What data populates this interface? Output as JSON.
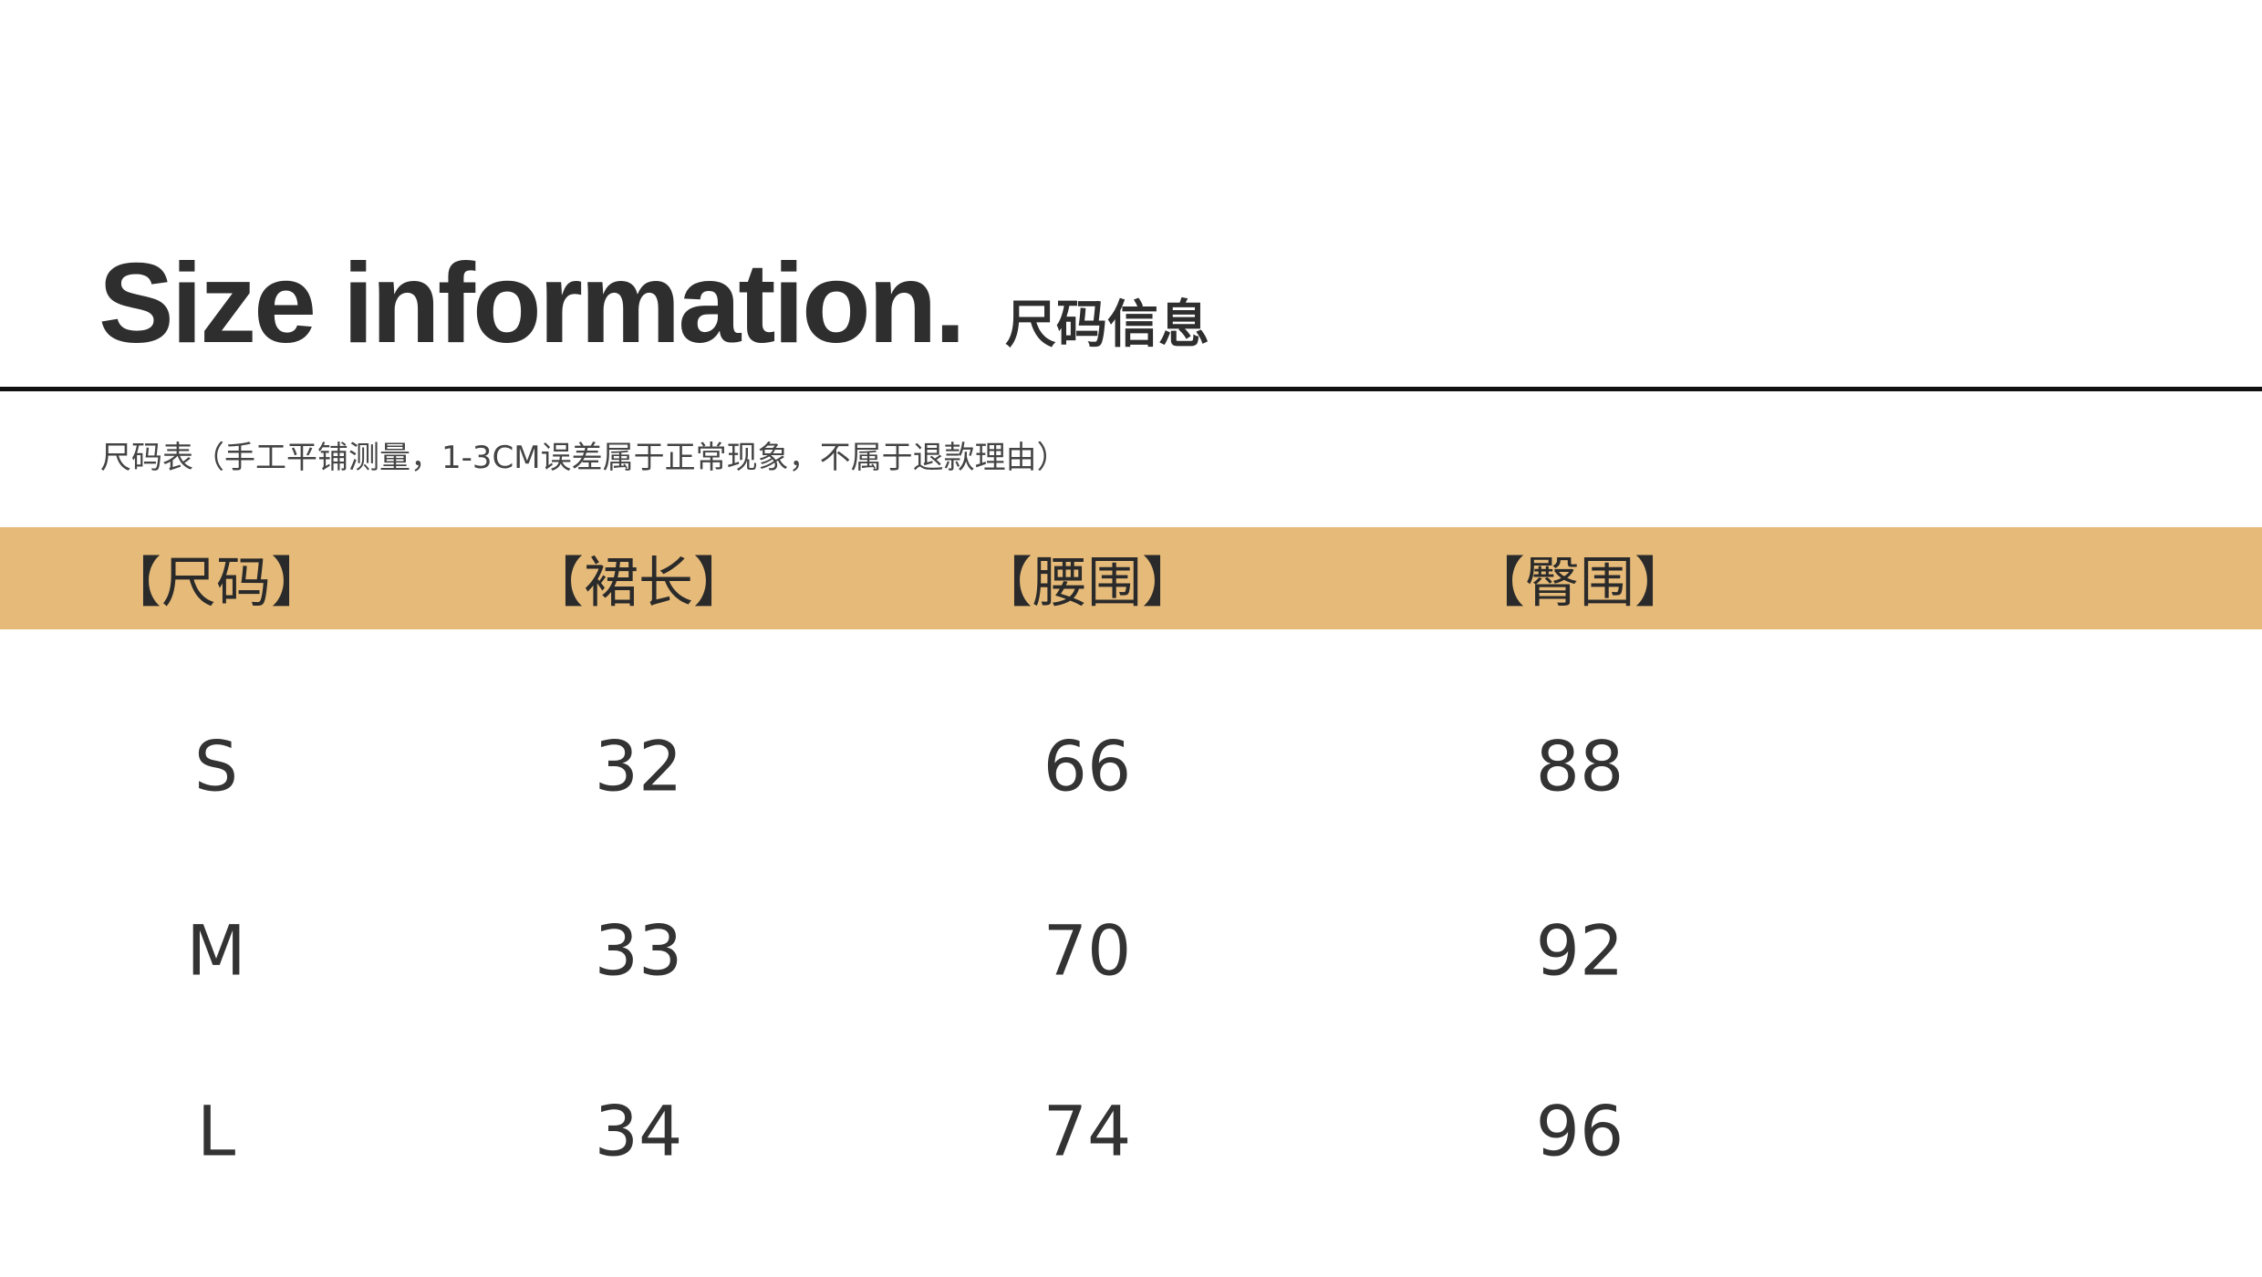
{
  "title": {
    "en": "Size information.",
    "cn": "尺码信息"
  },
  "subtitle": "尺码表（手工平铺测量，1-3CM误差属于正常现象，不属于退款理由）",
  "colors": {
    "header_band": "#e6bb7a",
    "rule": "#111111"
  },
  "table": {
    "headers": [
      "【尺码】",
      "【裙长】",
      "【腰围】",
      "【臀围】"
    ],
    "rows": [
      [
        "S",
        "32",
        "66",
        "88"
      ],
      [
        "M",
        "33",
        "70",
        "92"
      ],
      [
        "L",
        "34",
        "74",
        "96"
      ]
    ]
  }
}
